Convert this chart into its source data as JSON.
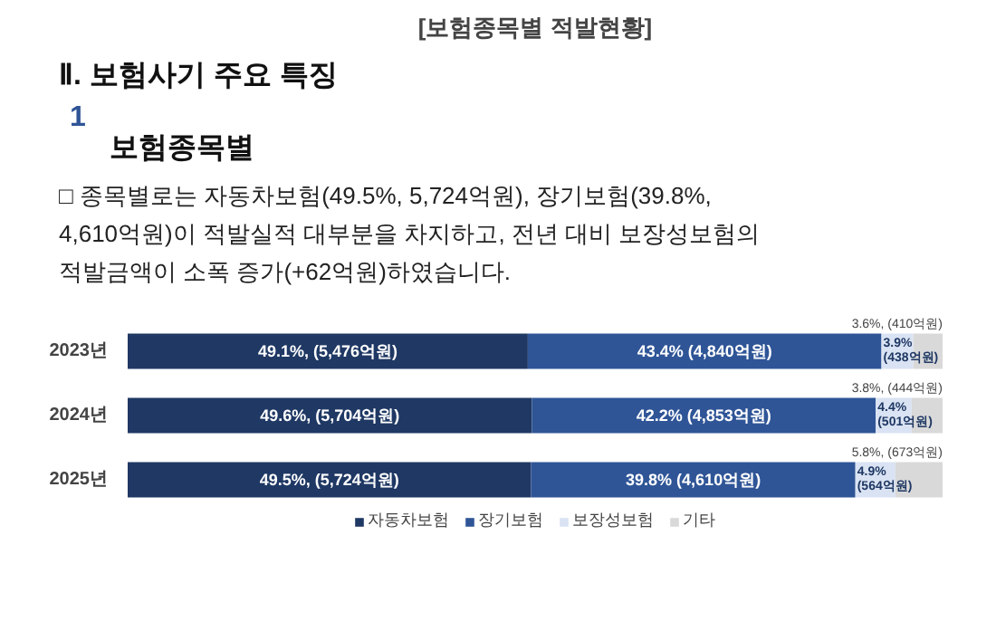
{
  "chart_data": {
    "type": "bar",
    "orientation": "horizontal",
    "stacked": true,
    "title": "[보험종목별 적발현황]",
    "annotations": [
      "Ⅱ. 보험사기 주요 특징",
      "1",
      "보험종목별",
      "□ 종목별로는 자동차보험(49.5%, 5,724억원), 장기보험(39.8%, 4,610억원)이 적발실적 대부분을 차지하고, 전년 대비 보장성보험의 적발금액이 소폭 증가(+62억원)하였습니다."
    ],
    "categories": [
      "2023년",
      "2024년",
      "2025년"
    ],
    "series": [
      {
        "name": "자동차보험",
        "color": "#1f3864",
        "values": [
          49.1,
          49.6,
          49.5
        ],
        "value_labels": [
          "49.1%, (5,476억원)",
          "49.6%, (5,704억원)",
          "49.5%, (5,724억원)"
        ]
      },
      {
        "name": "장기보험",
        "color": "#2f5597",
        "values": [
          43.4,
          42.2,
          39.8
        ],
        "value_labels": [
          "43.4% (4,840억원)",
          "42.2% (4,853억원)",
          "39.8% (4,610억원)"
        ]
      },
      {
        "name": "보장성보험",
        "color": "#dae3f3",
        "values": [
          3.9,
          4.4,
          4.9
        ],
        "value_labels": [
          "3.9%\n(438억원)",
          "4.4%\n(501억원)",
          "4.9%\n(564억원)"
        ]
      },
      {
        "name": "기타",
        "color": "#d9d9d9",
        "values": [
          3.6,
          3.8,
          5.8
        ],
        "value_labels": [
          "3.6%, (410억원)",
          "3.8%, (444억원)",
          "5.8%, (673억원)"
        ]
      }
    ],
    "legend": "bottom",
    "tick_labels": "y"
  }
}
